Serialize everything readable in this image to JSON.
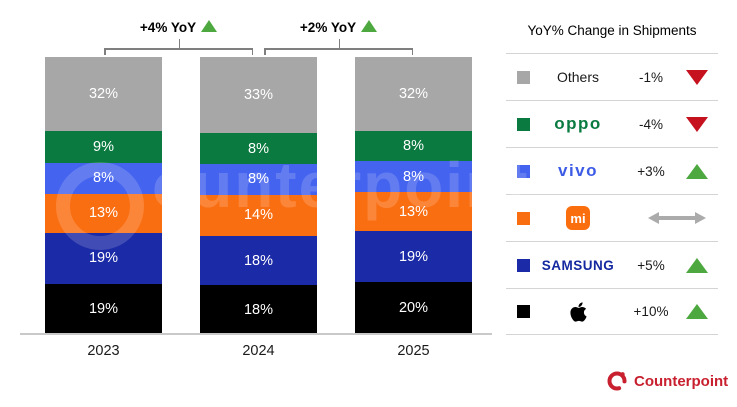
{
  "chart_data": {
    "type": "bar",
    "stacked": true,
    "categories": [
      "2023",
      "2024",
      "2025"
    ],
    "series": [
      {
        "name": "Others",
        "color": "#A7A7A7",
        "values": [
          32,
          33,
          32
        ]
      },
      {
        "name": "OPPO",
        "color": "#0B7A40",
        "values": [
          9,
          8,
          8
        ]
      },
      {
        "name": "vivo",
        "color": "#4463EF",
        "values": [
          8,
          8,
          8
        ]
      },
      {
        "name": "Xiaomi",
        "color": "#FA6E12",
        "values": [
          13,
          14,
          13
        ]
      },
      {
        "name": "Samsung",
        "color": "#1B2AA6",
        "values": [
          19,
          18,
          19
        ]
      },
      {
        "name": "Apple",
        "color": "#000000",
        "values": [
          19,
          18,
          20
        ]
      }
    ],
    "value_suffix": "%",
    "annotations": [
      {
        "label": "+4% YoY",
        "direction": "up",
        "between": [
          "2023",
          "2024"
        ]
      },
      {
        "label": "+2% YoY",
        "direction": "up",
        "between": [
          "2024",
          "2025"
        ]
      }
    ],
    "legend_title": "YoY% Change in Shipments",
    "legend": [
      {
        "name": "Others",
        "logo_text": "Others",
        "swatch": "#A7A7A7",
        "change": "-1%",
        "direction": "down"
      },
      {
        "name": "OPPO",
        "logo_text": "oppo",
        "swatch": "#0B7A40",
        "change": "-4%",
        "direction": "down"
      },
      {
        "name": "vivo",
        "logo_text": "vivo",
        "swatch": "#4463EF",
        "change": "+3%",
        "direction": "up"
      },
      {
        "name": "Xiaomi",
        "logo_text": "mi",
        "swatch": "#FA6E12",
        "change": "",
        "direction": "flat"
      },
      {
        "name": "Samsung",
        "logo_text": "SAMSUNG",
        "swatch": "#1B2AA6",
        "change": "+5%",
        "direction": "up"
      },
      {
        "name": "Apple",
        "logo_text": "",
        "swatch": "#000000",
        "change": "+10%",
        "direction": "up"
      }
    ],
    "legend_position": "right",
    "grid": false,
    "ylim": [
      0,
      100
    ]
  },
  "watermark": {
    "text": "ounterpoint"
  },
  "footer": {
    "brand": "Counterpoint"
  },
  "colors": {
    "up_green": "#4CA83F",
    "down_red": "#C5121E",
    "flat_gray": "#ABABAB",
    "counterpoint_red": "#C8202F",
    "axis_gray": "#C9C9C9"
  }
}
